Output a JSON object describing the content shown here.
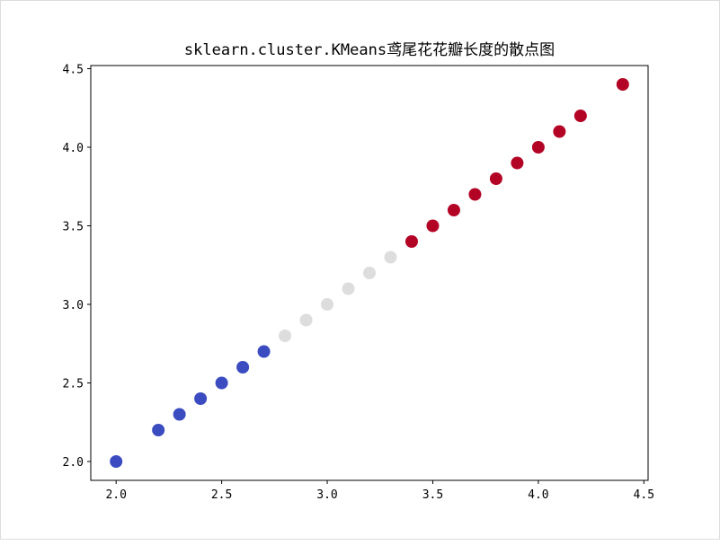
{
  "chart_data": {
    "type": "scatter",
    "title": "sklearn.cluster.KMeans鸢尾花花瓣长度的散点图",
    "xlabel": "",
    "ylabel": "",
    "xlim": [
      1.88,
      4.52
    ],
    "ylim": [
      1.88,
      4.52
    ],
    "xticks": [
      2.0,
      2.5,
      3.0,
      3.5,
      4.0,
      4.5
    ],
    "yticks": [
      2.0,
      2.5,
      3.0,
      3.5,
      4.0,
      4.5
    ],
    "xtick_labels": [
      "2.0",
      "2.5",
      "3.0",
      "3.5",
      "4.0",
      "4.5"
    ],
    "ytick_labels": [
      "2.0",
      "2.5",
      "3.0",
      "3.5",
      "4.0",
      "4.5"
    ],
    "grid": false,
    "cluster_colors": [
      "#3b4cc0",
      "#dddddd",
      "#b40426"
    ],
    "points": [
      {
        "x": 2.0,
        "y": 2.0,
        "cluster": 0
      },
      {
        "x": 2.2,
        "y": 2.2,
        "cluster": 0
      },
      {
        "x": 2.3,
        "y": 2.3,
        "cluster": 0
      },
      {
        "x": 2.4,
        "y": 2.4,
        "cluster": 0
      },
      {
        "x": 2.5,
        "y": 2.5,
        "cluster": 0
      },
      {
        "x": 2.6,
        "y": 2.6,
        "cluster": 0
      },
      {
        "x": 2.7,
        "y": 2.7,
        "cluster": 0
      },
      {
        "x": 2.8,
        "y": 2.8,
        "cluster": 1
      },
      {
        "x": 2.9,
        "y": 2.9,
        "cluster": 1
      },
      {
        "x": 3.0,
        "y": 3.0,
        "cluster": 1
      },
      {
        "x": 3.1,
        "y": 3.1,
        "cluster": 1
      },
      {
        "x": 3.2,
        "y": 3.2,
        "cluster": 1
      },
      {
        "x": 3.3,
        "y": 3.3,
        "cluster": 1
      },
      {
        "x": 3.4,
        "y": 3.4,
        "cluster": 2
      },
      {
        "x": 3.5,
        "y": 3.5,
        "cluster": 2
      },
      {
        "x": 3.6,
        "y": 3.6,
        "cluster": 2
      },
      {
        "x": 3.7,
        "y": 3.7,
        "cluster": 2
      },
      {
        "x": 3.8,
        "y": 3.8,
        "cluster": 2
      },
      {
        "x": 3.9,
        "y": 3.9,
        "cluster": 2
      },
      {
        "x": 4.0,
        "y": 4.0,
        "cluster": 2
      },
      {
        "x": 4.1,
        "y": 4.1,
        "cluster": 2
      },
      {
        "x": 4.2,
        "y": 4.2,
        "cluster": 2
      },
      {
        "x": 4.4,
        "y": 4.4,
        "cluster": 2
      }
    ]
  }
}
